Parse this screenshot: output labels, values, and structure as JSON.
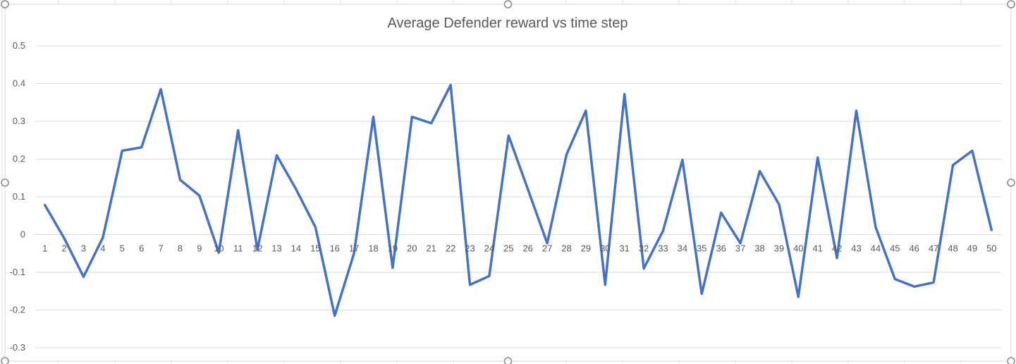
{
  "chart_data": {
    "type": "line",
    "title": "Average Defender reward  vs time step",
    "xlabel": "",
    "ylabel": "",
    "categories": [
      "1",
      "2",
      "3",
      "4",
      "5",
      "6",
      "7",
      "8",
      "9",
      "10",
      "11",
      "12",
      "13",
      "14",
      "15",
      "16",
      "17",
      "18",
      "19",
      "20",
      "21",
      "22",
      "23",
      "24",
      "25",
      "26",
      "27",
      "28",
      "29",
      "30",
      "31",
      "32",
      "33",
      "34",
      "35",
      "36",
      "37",
      "38",
      "39",
      "40",
      "41",
      "42",
      "43",
      "44",
      "45",
      "46",
      "47",
      "48",
      "49",
      "50"
    ],
    "series": [
      {
        "values": [
          0.078,
          -0.01,
          -0.112,
          -0.008,
          0.222,
          0.231,
          0.385,
          0.145,
          0.103,
          -0.048,
          0.276,
          -0.04,
          0.21,
          0.12,
          0.02,
          -0.215,
          -0.05,
          0.312,
          -0.088,
          0.312,
          0.295,
          0.396,
          -0.133,
          -0.11,
          0.262,
          0.12,
          -0.023,
          0.212,
          0.328,
          -0.133,
          0.372,
          -0.09,
          0.01,
          0.198,
          -0.157,
          0.058,
          -0.023,
          0.168,
          0.08,
          -0.165,
          0.204,
          -0.062,
          0.328,
          0.02,
          -0.118,
          -0.138,
          -0.127,
          0.184,
          0.222,
          0.012
        ],
        "color": "#4472c4"
      }
    ],
    "y_ticks": [
      "0.5",
      "0.4",
      "0.3",
      "0.2",
      "0.1",
      "0",
      "-0.1",
      "-0.2",
      "-0.3"
    ],
    "ylim": [
      -0.3,
      0.5
    ],
    "grid": true,
    "legend": "none"
  }
}
